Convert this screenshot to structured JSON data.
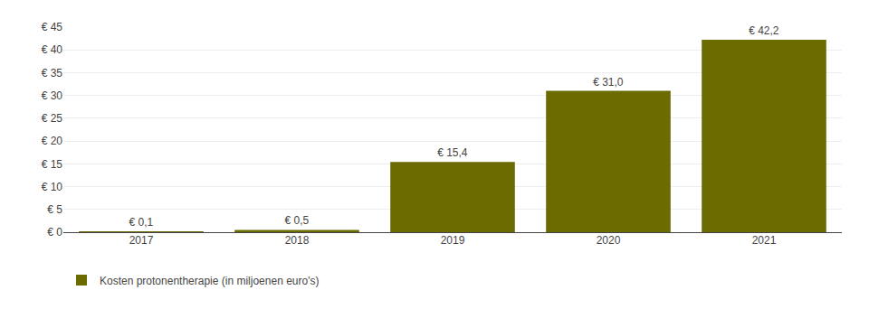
{
  "chart_data": {
    "type": "bar",
    "categories": [
      "2017",
      "2018",
      "2019",
      "2020",
      "2021"
    ],
    "series": [
      {
        "name": "Kosten protonentherapie (in miljoenen euro's)",
        "color": "#6b6b00",
        "values": [
          0.1,
          0.5,
          15.4,
          31.0,
          42.2
        ],
        "value_labels": [
          "€ 0,1",
          "€ 0,5",
          "€ 15,4",
          "€ 31,0",
          "€ 42,2"
        ]
      }
    ],
    "ylim": [
      0,
      45
    ],
    "yticks": [
      {
        "value": 0,
        "label": "€ 0"
      },
      {
        "value": 5,
        "label": "€ 5"
      },
      {
        "value": 10,
        "label": "€ 10"
      },
      {
        "value": 15,
        "label": "€ 15"
      },
      {
        "value": 20,
        "label": "€ 20"
      },
      {
        "value": 25,
        "label": "€ 25"
      },
      {
        "value": 30,
        "label": "€ 30"
      },
      {
        "value": 35,
        "label": "€ 35"
      },
      {
        "value": 40,
        "label": "€ 40"
      },
      {
        "value": 45,
        "label": "€ 45"
      }
    ],
    "grid": true,
    "data_labels": true,
    "legend": "bottom"
  }
}
